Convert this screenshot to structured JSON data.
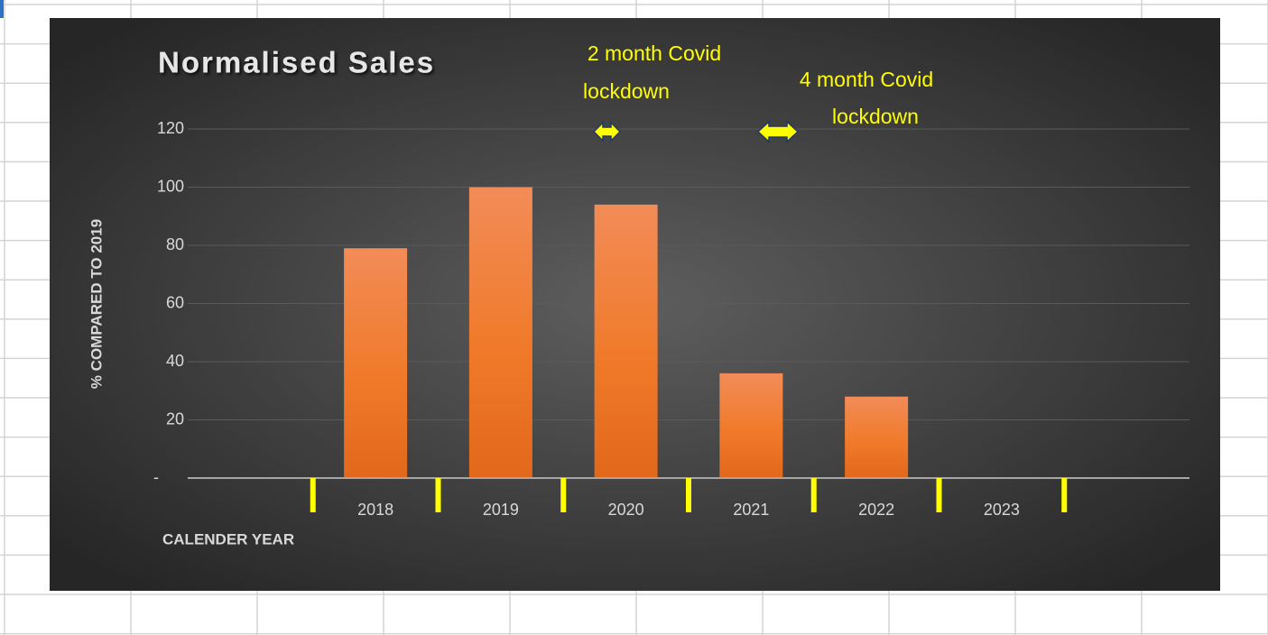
{
  "chart_data": {
    "type": "bar",
    "title": "Normalised Sales",
    "y_label": "% COMPARED TO 2019",
    "x_label": "CALENDER YEAR",
    "categories": [
      null,
      "2018",
      "2019",
      "2020",
      "2021",
      "2022",
      "2023",
      null
    ],
    "values": [
      null,
      79,
      100,
      94,
      36,
      28,
      null,
      null
    ],
    "color": "#ed7d31",
    "ylim": [
      0,
      120
    ],
    "yticks": [
      {
        "value": 0,
        "label": "-"
      },
      20,
      40,
      60,
      80,
      100,
      120
    ],
    "grid": true,
    "annotations": [
      {
        "lines": [
          "2 month Covid",
          "lockdown"
        ]
      },
      {
        "lines": [
          "4 month Covid",
          "lockdown"
        ]
      }
    ]
  }
}
